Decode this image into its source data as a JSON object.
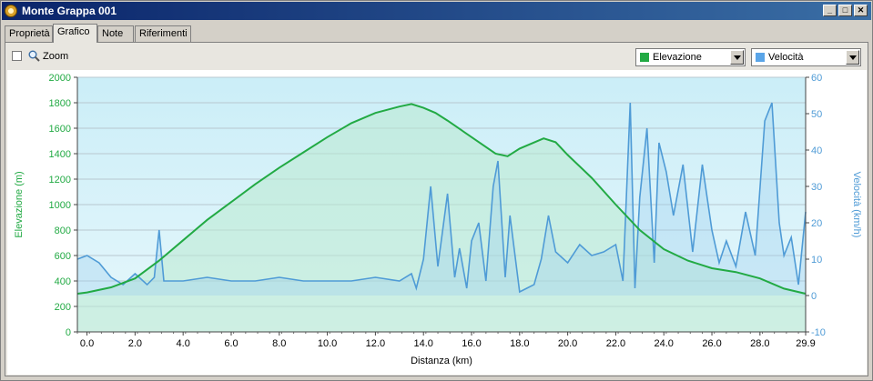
{
  "window": {
    "title": "Monte Grappa 001"
  },
  "tabs": [
    {
      "label": "Proprietà"
    },
    {
      "label": "Grafico",
      "active": true
    },
    {
      "label": "Note"
    },
    {
      "label": "Riferimenti"
    }
  ],
  "toolbar": {
    "zoom_label": "Zoom",
    "zoom_checked": false,
    "left_series_select": {
      "value": "Elevazione",
      "color": "#22aa44"
    },
    "right_series_select": {
      "value": "Velocità",
      "color": "#5aa5e8"
    }
  },
  "chart_data": {
    "type": "line",
    "xlabel": "Distanza (km)",
    "x_ticks": [
      "0.0",
      "2.0",
      "4.0",
      "6.0",
      "8.0",
      "10.0",
      "12.0",
      "14.0",
      "16.0",
      "18.0",
      "20.0",
      "22.0",
      "24.0",
      "26.0",
      "28.0",
      "29.9"
    ],
    "xlim": [
      -0.4,
      29.9
    ],
    "y_left": {
      "label": "Elevazione (m)",
      "lim": [
        0,
        2000
      ],
      "ticks": [
        "0",
        "200",
        "400",
        "600",
        "800",
        "1000",
        "1200",
        "1400",
        "1600",
        "1800",
        "2000"
      ],
      "color": "#22aa44"
    },
    "y_right": {
      "label": "Velocità (km/h)",
      "lim": [
        -10,
        60
      ],
      "ticks": [
        "-10",
        "0",
        "10",
        "20",
        "30",
        "40",
        "50",
        "60"
      ],
      "color": "#4f9bd6"
    },
    "grid": true,
    "series": [
      {
        "name": "Elevazione",
        "axis": "left",
        "color": "#22aa44",
        "x": [
          -0.4,
          0,
          1,
          2,
          3,
          4,
          5,
          6,
          7,
          8,
          9,
          10,
          11,
          12,
          13,
          13.5,
          14,
          14.5,
          15,
          16,
          17,
          17.5,
          18,
          19,
          19.5,
          20,
          21,
          22,
          23,
          24,
          25,
          26,
          27,
          28,
          29,
          29.9
        ],
        "y": [
          300,
          310,
          350,
          420,
          560,
          720,
          880,
          1020,
          1160,
          1290,
          1410,
          1530,
          1640,
          1720,
          1770,
          1790,
          1760,
          1720,
          1660,
          1530,
          1400,
          1380,
          1440,
          1520,
          1490,
          1390,
          1210,
          1000,
          800,
          650,
          560,
          500,
          470,
          420,
          340,
          300
        ]
      },
      {
        "name": "Velocità",
        "axis": "right",
        "color": "#4f9bd6",
        "x": [
          -0.4,
          0,
          0.5,
          1,
          1.5,
          2,
          2.5,
          2.8,
          3.0,
          3.2,
          4,
          5,
          6,
          7,
          8,
          9,
          10,
          11,
          12,
          13,
          13.5,
          13.7,
          14,
          14.3,
          14.6,
          15,
          15.3,
          15.5,
          15.8,
          16,
          16.3,
          16.6,
          16.9,
          17.1,
          17.4,
          17.6,
          18,
          18.3,
          18.6,
          18.9,
          19.2,
          19.5,
          20,
          20.5,
          21,
          21.5,
          22,
          22.3,
          22.6,
          22.8,
          23,
          23.3,
          23.6,
          23.8,
          24.1,
          24.4,
          24.8,
          25.2,
          25.6,
          26,
          26.3,
          26.6,
          27,
          27.4,
          27.8,
          28.2,
          28.5,
          28.8,
          29,
          29.3,
          29.6,
          29.9
        ],
        "y": [
          10,
          11,
          9,
          5,
          3,
          6,
          3,
          5,
          18,
          4,
          4,
          5,
          4,
          4,
          5,
          4,
          4,
          4,
          5,
          4,
          6,
          2,
          10,
          30,
          8,
          28,
          5,
          13,
          2,
          15,
          20,
          4,
          30,
          37,
          5,
          22,
          1,
          2,
          3,
          10,
          22,
          12,
          9,
          14,
          11,
          12,
          14,
          4,
          53,
          2,
          27,
          46,
          9,
          42,
          34,
          22,
          36,
          12,
          36,
          18,
          9,
          15,
          8,
          23,
          11,
          48,
          53,
          20,
          11,
          16,
          3,
          23
        ]
      }
    ]
  }
}
